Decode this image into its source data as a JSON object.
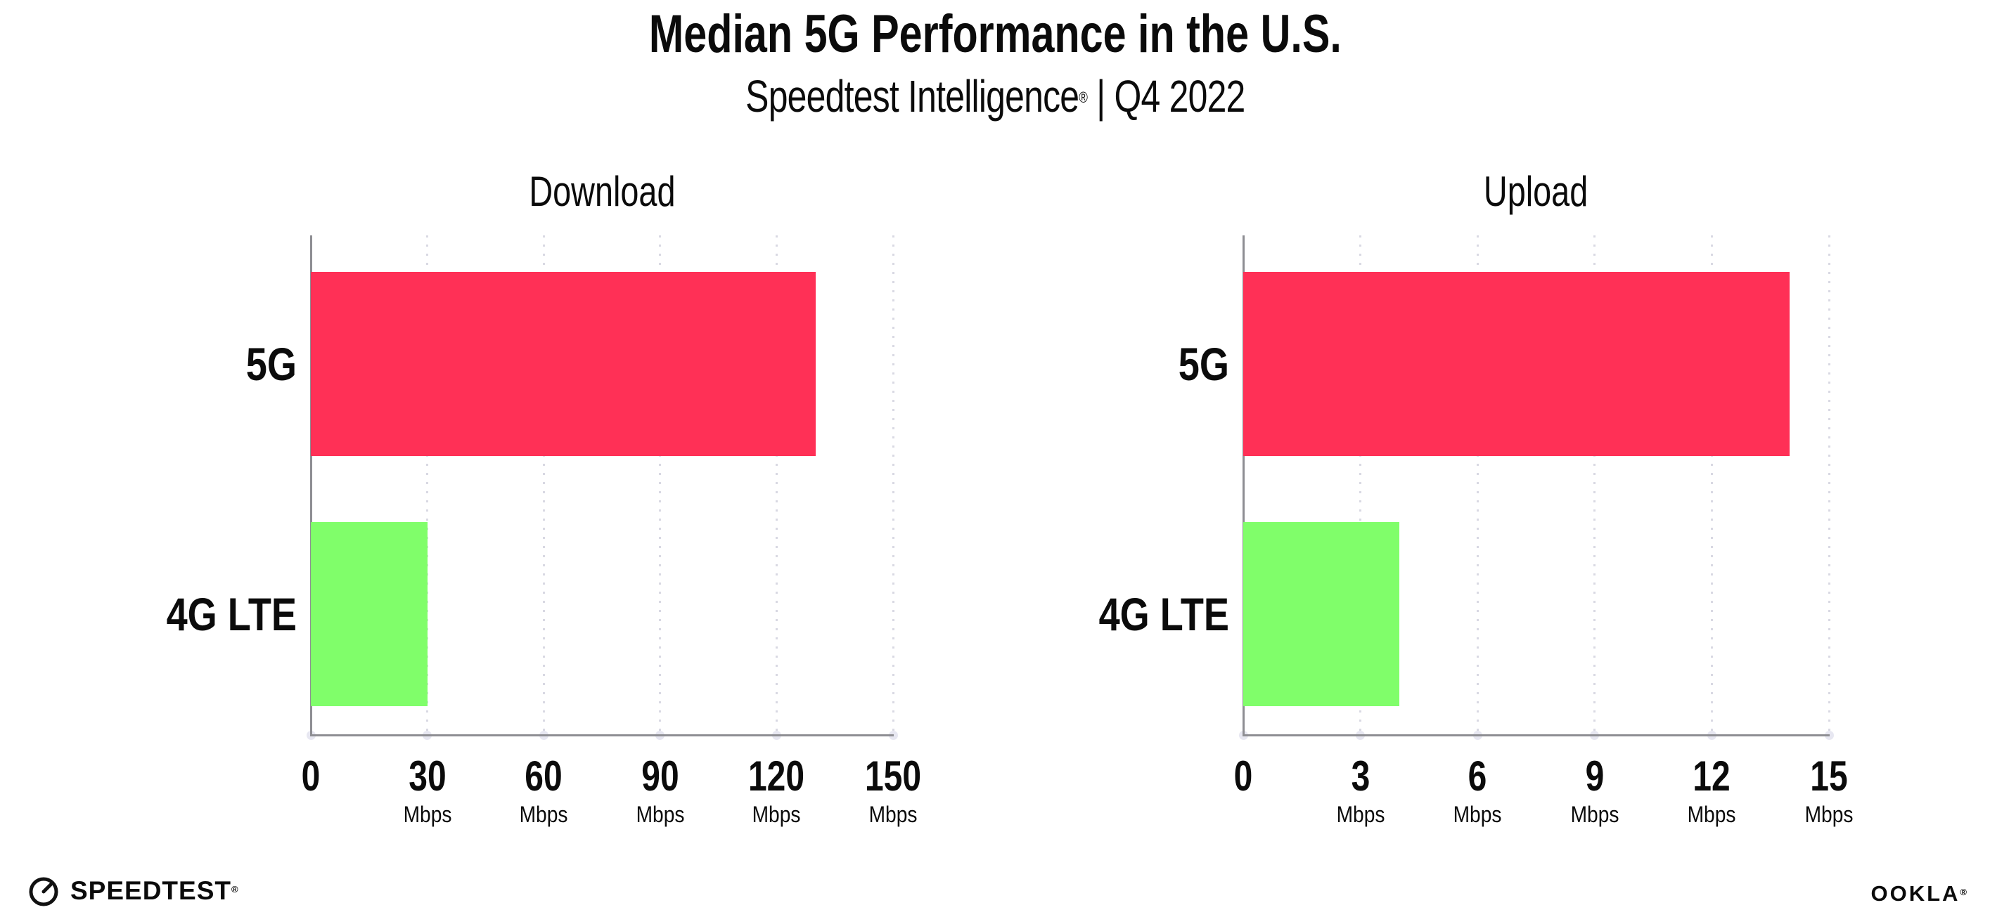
{
  "header": {
    "title": "Median 5G Performance in the U.S.",
    "subtitle_brand": "Speedtest Intelligence",
    "subtitle_reg": "®",
    "subtitle_rest": " | Q4 2022"
  },
  "chart_data": [
    {
      "type": "bar",
      "orientation": "horizontal",
      "title": "Download",
      "categories": [
        "5G",
        "4G LTE"
      ],
      "values": [
        130,
        30
      ],
      "unit": "Mbps",
      "xlabel": "",
      "ylabel": "",
      "xlim": [
        0,
        150
      ],
      "xticks": [
        0,
        30,
        60,
        90,
        120,
        150
      ],
      "bar_colors": [
        "#FF3056",
        "#80FE6A"
      ],
      "grid": "dotted-vertical-gridlines",
      "legend": "none"
    },
    {
      "type": "bar",
      "orientation": "horizontal",
      "title": "Upload",
      "categories": [
        "5G",
        "4G LTE"
      ],
      "values": [
        14,
        4
      ],
      "unit": "Mbps",
      "xlabel": "",
      "ylabel": "",
      "xlim": [
        0,
        15
      ],
      "xticks": [
        0,
        3,
        6,
        9,
        12,
        15
      ],
      "bar_colors": [
        "#FF3056",
        "#80FE6A"
      ],
      "grid": "dotted-vertical-gridlines",
      "legend": "none"
    }
  ],
  "footer": {
    "speedtest_logo_text": "SPEEDTEST",
    "speedtest_reg": "®",
    "speedtest_icon": "speedtest-gauge-icon",
    "ookla_logo_text": "OOKLA",
    "ookla_reg": "®"
  },
  "colors": {
    "bar_5g": "#FF3056",
    "bar_4g_lte": "#80FE6A",
    "axis": "#8E8E93",
    "gridline_dot": "#D9D9E3",
    "tick_dot": "#E7E7F1",
    "text": "#0B0B0B",
    "background": "#FFFFFF"
  }
}
